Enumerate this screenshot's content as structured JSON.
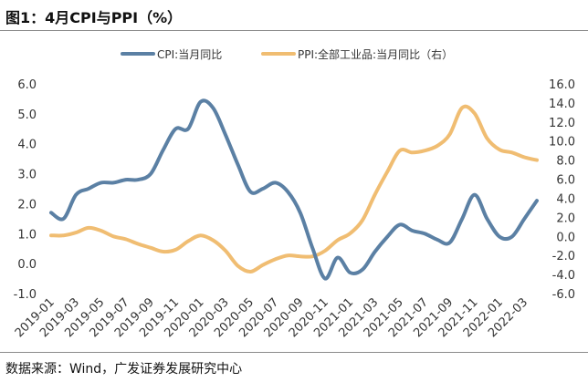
{
  "header": {
    "title": "图1：4月CPI与PPI（%）"
  },
  "footer": {
    "source": "数据来源：Wind，广发证券发展研究中心"
  },
  "colors": {
    "cpi": "#5b80a4",
    "ppi": "#f0bd72"
  },
  "chart_data": {
    "type": "line",
    "title": "图1：4月CPI与PPI（%）",
    "x": [
      "2019-01",
      "2019-02",
      "2019-03",
      "2019-04",
      "2019-05",
      "2019-06",
      "2019-07",
      "2019-08",
      "2019-09",
      "2019-10",
      "2019-11",
      "2019-12",
      "2020-01",
      "2020-02",
      "2020-03",
      "2020-04",
      "2020-05",
      "2020-06",
      "2020-07",
      "2020-08",
      "2020-09",
      "2020-10",
      "2020-11",
      "2020-12",
      "2021-01",
      "2021-02",
      "2021-03",
      "2021-04",
      "2021-05",
      "2021-06",
      "2021-07",
      "2021-08",
      "2021-09",
      "2021-10",
      "2021-11",
      "2021-12",
      "2022-01",
      "2022-02",
      "2022-03",
      "2022-04"
    ],
    "xtick_labels": [
      "2019-01",
      "2019-03",
      "2019-05",
      "2019-07",
      "2019-09",
      "2019-11",
      "2020-01",
      "2020-03",
      "2020-05",
      "2020-07",
      "2020-09",
      "2020-11",
      "2021-01",
      "2021-03",
      "2021-05",
      "2021-07",
      "2021-09",
      "2021-11",
      "2022-01",
      "2022-03"
    ],
    "series": [
      {
        "name": "CPI:当月同比",
        "axis": "left",
        "values": [
          1.7,
          1.5,
          2.3,
          2.5,
          2.7,
          2.7,
          2.8,
          2.8,
          3.0,
          3.8,
          4.5,
          4.5,
          5.4,
          5.2,
          4.3,
          3.3,
          2.4,
          2.5,
          2.7,
          2.4,
          1.7,
          0.5,
          -0.5,
          0.2,
          -0.3,
          -0.2,
          0.4,
          0.9,
          1.3,
          1.1,
          1.0,
          0.8,
          0.7,
          1.5,
          2.3,
          1.5,
          0.9,
          0.9,
          1.5,
          2.1
        ]
      },
      {
        "name": "PPI:全部工业品:当月同比（右）",
        "axis": "right",
        "values": [
          0.1,
          0.1,
          0.4,
          0.9,
          0.6,
          0.0,
          -0.3,
          -0.8,
          -1.2,
          -1.6,
          -1.4,
          -0.5,
          0.1,
          -0.4,
          -1.5,
          -3.1,
          -3.7,
          -3.0,
          -2.4,
          -2.0,
          -2.1,
          -2.1,
          -1.5,
          -0.4,
          0.3,
          1.7,
          4.4,
          6.8,
          9.0,
          8.8,
          9.0,
          9.5,
          10.7,
          13.5,
          12.9,
          10.3,
          9.1,
          8.8,
          8.3,
          8.0
        ]
      }
    ],
    "ylim_left": [
      -1.0,
      6.0
    ],
    "yticks_left": [
      "-1.0",
      "0.0",
      "1.0",
      "2.0",
      "3.0",
      "4.0",
      "5.0",
      "6.0"
    ],
    "ylim_right": [
      -6.0,
      16.0
    ],
    "yticks_right": [
      "-6.0",
      "-4.0",
      "-2.0",
      "0.0",
      "2.0",
      "4.0",
      "6.0",
      "8.0",
      "10.0",
      "12.0",
      "14.0",
      "16.0"
    ],
    "legend_position": "top-center",
    "grid": false
  }
}
